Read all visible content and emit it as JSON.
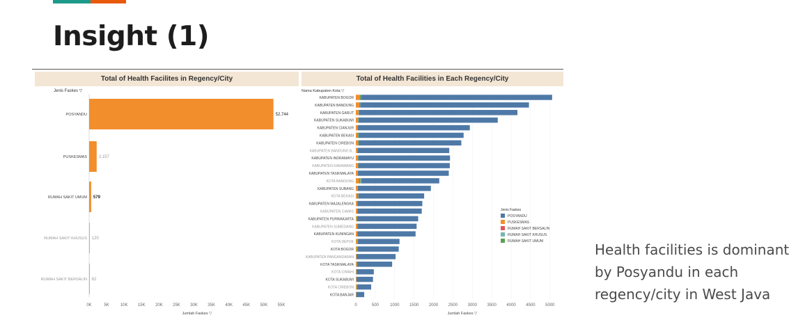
{
  "slide": {
    "title": "Insight (1)",
    "accent_colors": [
      "#1e9a8a",
      "#e8590c"
    ],
    "caption_lines": [
      "Health facilities is dominant",
      "by Posyandu in each",
      "regency/city in West Java"
    ]
  },
  "left_chart": {
    "panel_title": "Total of Health Facilites in Regency/City",
    "filter_label": "Jenis Faskes",
    "x_axis_label": "Jumlah Faskes",
    "chart_data": {
      "type": "bar",
      "orientation": "horizontal",
      "title": "Total of Health Facilites in Regency/City",
      "ylabel": "Jenis Faskes",
      "xlabel": "Jumlah Faskes",
      "xlim": [
        0,
        55000
      ],
      "x_ticks": [
        "0K",
        "5K",
        "10K",
        "15K",
        "20K",
        "25K",
        "30K",
        "35K",
        "40K",
        "45K",
        "50K",
        "55K"
      ],
      "categories": [
        "POSYANDU",
        "PUSKESMAS",
        "RUMAH SAKIT UMUM",
        "RUMAH SAKIT KHUSUS",
        "RUMAH SAKIT BERSALIN"
      ],
      "values": [
        52744,
        2157,
        579,
        120,
        62
      ],
      "value_labels": [
        "52,744",
        "2,157",
        "579",
        "120",
        "62"
      ],
      "bar_color": "#f28e2b"
    }
  },
  "right_chart": {
    "panel_title": "Total of Health Facilities in Each Regency/City",
    "filter_label": "Nama Kabupaten Kota",
    "x_axis_label": "Jumlah Faskes",
    "legend_title": "Jenis Faskes",
    "chart_data": {
      "type": "bar",
      "stacked": true,
      "orientation": "horizontal",
      "title": "Total of Health Facilities in Each Regency/City",
      "ylabel": "Nama Kabupaten Kota",
      "xlabel": "Jumlah Faskes",
      "xlim": [
        0,
        5200
      ],
      "x_ticks": [
        "0",
        "500",
        "1000",
        "1500",
        "2000",
        "2500",
        "3000",
        "3500",
        "4000",
        "4500",
        "5000"
      ],
      "legend_position": "right",
      "categories": [
        "KABUPATEN BOGOR",
        "KABUPATEN BANDUNG",
        "KABUPATEN GARUT",
        "KABUPATEN SUKABUMI",
        "KABUPATEN CIANJUR",
        "KABUPATEN BEKASI",
        "KABUPATEN CIREBON",
        "KABUPATEN BANDUNG B..",
        "KABUPATEN INDRAMAYU",
        "KABUPATEN KARAWANG",
        "KABUPATEN TASIKMALAYA",
        "KOTA BANDUNG",
        "KABUPATEN SUBANG",
        "KOTA BEKASI",
        "KABUPATEN MAJALENGKA",
        "KABUPATEN CIAMIS",
        "KABUPATEN PURWAKARTA",
        "KABUPATEN SUMEDANG",
        "KABUPATEN KUNINGAN",
        "KOTA DEPOK",
        "KOTA BOGOR",
        "KABUPATEN PANGANDARAN",
        "KOTA TASIKMALAYA",
        "KOTA CIMAHI",
        "KOTA SUKABUMI",
        "KOTA CIREBON",
        "KOTA BANJAR"
      ],
      "series": [
        {
          "name": "POSYANDU",
          "color": "#4e79a7",
          "values": [
            4920,
            4340,
            4080,
            3580,
            2880,
            2700,
            2640,
            2360,
            2360,
            2350,
            2340,
            2010,
            1880,
            1690,
            1670,
            1650,
            1570,
            1520,
            1490,
            1070,
            1060,
            1000,
            900,
            440,
            420,
            360,
            200
          ]
        },
        {
          "name": "PUSKESMAS",
          "color": "#f28e2b",
          "values": [
            101,
            88,
            67,
            58,
            45,
            45,
            60,
            32,
            49,
            50,
            40,
            80,
            40,
            31,
            32,
            37,
            20,
            35,
            37,
            30,
            25,
            16,
            22,
            13,
            15,
            22,
            10
          ]
        },
        {
          "name": "RUMAH SAKIT BERSALIN",
          "color": "#e15759",
          "values": [
            3,
            3,
            2,
            2,
            1,
            3,
            2,
            1,
            2,
            2,
            1,
            6,
            1,
            4,
            1,
            1,
            1,
            1,
            1,
            2,
            2,
            1,
            1,
            1,
            1,
            1,
            1
          ]
        },
        {
          "name": "RUMAH SAKIT KHUSUS",
          "color": "#76b7b2",
          "values": [
            5,
            4,
            2,
            2,
            1,
            3,
            2,
            2,
            2,
            2,
            2,
            12,
            1,
            4,
            1,
            1,
            2,
            1,
            1,
            3,
            3,
            1,
            2,
            1,
            1,
            2,
            1
          ]
        },
        {
          "name": "RUMAH SAKIT UMUM",
          "color": "#59a14f",
          "values": [
            25,
            22,
            10,
            12,
            8,
            24,
            12,
            10,
            12,
            15,
            10,
            40,
            10,
            30,
            8,
            8,
            12,
            8,
            9,
            20,
            15,
            5,
            10,
            8,
            5,
            10,
            4
          ]
        }
      ]
    }
  }
}
